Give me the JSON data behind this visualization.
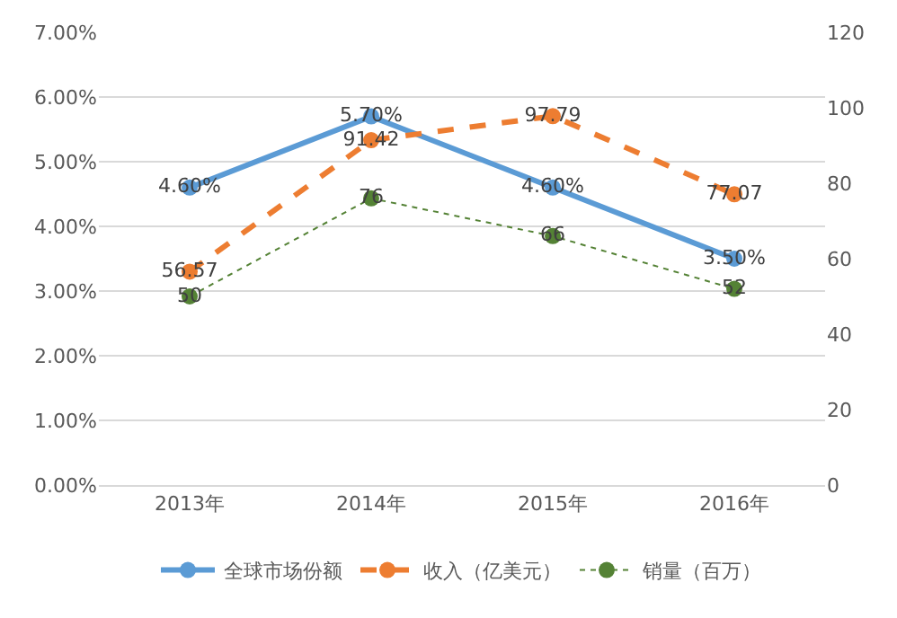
{
  "chart_data": {
    "type": "line",
    "categories": [
      "2013年",
      "2014年",
      "2015年",
      "2016年"
    ],
    "series": [
      {
        "name": "全球市场份额",
        "color": "#5b9bd5",
        "values": [
          4.6,
          5.7,
          4.6,
          3.5
        ],
        "value_labels": [
          "4.60%",
          "5.70%",
          "4.60%",
          "3.50%"
        ],
        "line_style": "solid"
      },
      {
        "name": "收入（亿美元）",
        "color": "#ed7d31",
        "values": [
          56.57,
          91.42,
          97.79,
          77.07
        ],
        "value_labels": [
          "56.57",
          "91.42",
          "97.79",
          "77.07"
        ],
        "line_style": "dashed",
        "axis": "y2"
      },
      {
        "name": "销量（百万）",
        "color": "#548235",
        "values": [
          50,
          76,
          66,
          52
        ],
        "value_labels": [
          "50",
          "76",
          "66",
          "52"
        ],
        "line_style": "dotted",
        "axis": "y2"
      }
    ],
    "ylim": [
      0,
      7
    ],
    "yticks": [
      {
        "value": 0,
        "label": "0.00%"
      },
      {
        "value": 1,
        "label": "1.00%"
      },
      {
        "value": 2,
        "label": "2.00%"
      },
      {
        "value": 3,
        "label": "3.00%"
      },
      {
        "value": 4,
        "label": "4.00%"
      },
      {
        "value": 5,
        "label": "5.00%"
      },
      {
        "value": 6,
        "label": "6.00%"
      },
      {
        "value": 7,
        "label": "7.00%"
      }
    ],
    "y2lim": [
      0,
      120
    ],
    "y2ticks": [
      0,
      20,
      40,
      60,
      80,
      100,
      120
    ],
    "grid": "y",
    "legend": "bottom",
    "marker": "circle"
  }
}
